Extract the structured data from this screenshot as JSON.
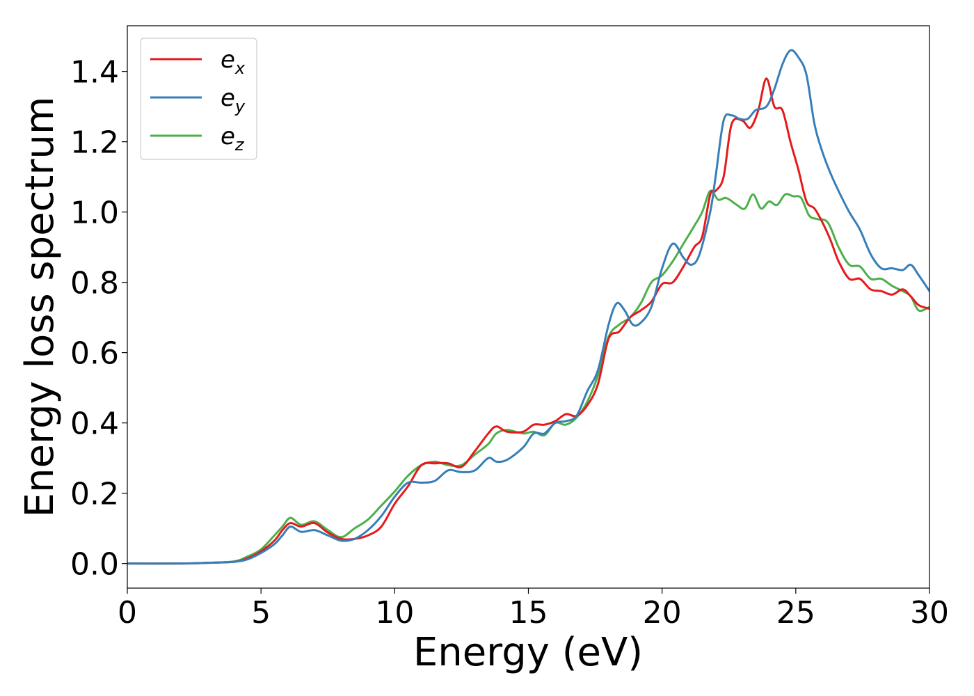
{
  "chart_data": {
    "type": "line",
    "title": "",
    "xlabel": "Energy (eV)",
    "ylabel": "Energy loss spectrum",
    "xlim": [
      0,
      30
    ],
    "ylim": [
      -0.07,
      1.53
    ],
    "xticks": [
      0,
      5,
      10,
      15,
      20,
      25,
      30
    ],
    "yticks": [
      0.0,
      0.2,
      0.4,
      0.6,
      0.8,
      1.0,
      1.2,
      1.4
    ],
    "xtick_labels": [
      "0",
      "5",
      "10",
      "15",
      "20",
      "25",
      "30"
    ],
    "ytick_labels": [
      "0.0",
      "0.2",
      "0.4",
      "0.6",
      "0.8",
      "1.0",
      "1.2",
      "1.4"
    ],
    "grid": false,
    "legend_position": "top-left",
    "series": [
      {
        "name": "e_x",
        "legend_base": "e",
        "legend_sub": "x",
        "color": "#e41a1c",
        "x": [
          0,
          2,
          3,
          4,
          4.5,
          5,
          5.5,
          5.8,
          6.1,
          6.5,
          7.0,
          7.5,
          8.0,
          8.5,
          9.0,
          9.5,
          10,
          10.5,
          11,
          11.5,
          12,
          12.5,
          13,
          13.5,
          13.8,
          14.2,
          14.8,
          15.2,
          15.6,
          16,
          16.4,
          16.8,
          17.2,
          17.6,
          18,
          18.4,
          18.8,
          19.2,
          19.6,
          20,
          20.4,
          20.8,
          21.2,
          21.5,
          21.8,
          22,
          22.3,
          22.6,
          23,
          23.3,
          23.6,
          23.9,
          24.2,
          24.5,
          24.8,
          25.1,
          25.4,
          25.7,
          26,
          26.3,
          26.6,
          27,
          27.4,
          27.8,
          28.2,
          28.6,
          29,
          29.3,
          29.6,
          30
        ],
        "values": [
          0,
          0,
          0.002,
          0.005,
          0.015,
          0.035,
          0.065,
          0.095,
          0.115,
          0.105,
          0.115,
          0.088,
          0.07,
          0.07,
          0.08,
          0.105,
          0.17,
          0.22,
          0.28,
          0.285,
          0.285,
          0.275,
          0.32,
          0.37,
          0.39,
          0.375,
          0.375,
          0.395,
          0.395,
          0.405,
          0.425,
          0.42,
          0.45,
          0.51,
          0.64,
          0.66,
          0.7,
          0.72,
          0.745,
          0.795,
          0.8,
          0.845,
          0.9,
          0.93,
          1.05,
          1.06,
          1.1,
          1.25,
          1.26,
          1.24,
          1.29,
          1.38,
          1.3,
          1.29,
          1.2,
          1.12,
          1.03,
          1.01,
          0.97,
          0.92,
          0.86,
          0.81,
          0.81,
          0.78,
          0.775,
          0.765,
          0.78,
          0.76,
          0.735,
          0.725
        ]
      },
      {
        "name": "e_y",
        "legend_base": "e",
        "legend_sub": "y",
        "color": "#377eb8",
        "x": [
          0,
          2,
          3,
          4,
          4.5,
          5,
          5.5,
          5.8,
          6.1,
          6.5,
          7.0,
          7.5,
          8.0,
          8.5,
          9.0,
          9.5,
          10,
          10.5,
          11,
          11.5,
          12,
          12.5,
          13,
          13.5,
          13.8,
          14.2,
          14.8,
          15.2,
          15.6,
          16,
          16.4,
          16.8,
          17.2,
          17.6,
          18,
          18.3,
          18.6,
          18.9,
          19.2,
          19.6,
          20,
          20.4,
          20.8,
          21.1,
          21.4,
          21.8,
          22,
          22.3,
          22.6,
          22.9,
          23.2,
          23.5,
          23.9,
          24.2,
          24.5,
          24.8,
          25.1,
          25.4,
          25.7,
          26,
          26.3,
          26.6,
          27,
          27.4,
          27.8,
          28.2,
          28.6,
          29,
          29.3,
          29.6,
          30
        ],
        "values": [
          0,
          0,
          0.002,
          0.005,
          0.012,
          0.03,
          0.055,
          0.08,
          0.105,
          0.09,
          0.095,
          0.08,
          0.065,
          0.07,
          0.095,
          0.135,
          0.19,
          0.23,
          0.23,
          0.235,
          0.265,
          0.26,
          0.265,
          0.3,
          0.29,
          0.295,
          0.33,
          0.37,
          0.37,
          0.4,
          0.405,
          0.42,
          0.49,
          0.55,
          0.68,
          0.74,
          0.72,
          0.68,
          0.685,
          0.73,
          0.84,
          0.91,
          0.87,
          0.85,
          0.88,
          1.0,
          1.1,
          1.26,
          1.275,
          1.265,
          1.265,
          1.29,
          1.3,
          1.35,
          1.42,
          1.46,
          1.44,
          1.39,
          1.25,
          1.17,
          1.11,
          1.06,
          1.0,
          0.95,
          0.88,
          0.84,
          0.84,
          0.835,
          0.85,
          0.82,
          0.775
        ]
      },
      {
        "name": "e_z",
        "legend_base": "e",
        "legend_sub": "z",
        "color": "#4daf4a",
        "x": [
          0,
          2,
          3,
          4,
          4.5,
          5,
          5.5,
          5.8,
          6.1,
          6.5,
          7.0,
          7.5,
          8.0,
          8.5,
          9.0,
          9.5,
          10,
          10.5,
          11,
          11.5,
          12,
          12.5,
          13,
          13.5,
          13.8,
          14.2,
          14.8,
          15.2,
          15.6,
          16,
          16.4,
          16.8,
          17.2,
          17.6,
          18,
          18.4,
          18.8,
          19.2,
          19.6,
          20,
          20.4,
          20.8,
          21.2,
          21.5,
          21.8,
          22.1,
          22.4,
          22.8,
          23.1,
          23.4,
          23.7,
          24.0,
          24.3,
          24.6,
          24.9,
          25.2,
          25.5,
          25.8,
          26.2,
          26.6,
          27.0,
          27.4,
          27.8,
          28.2,
          28.6,
          29,
          29.3,
          29.6,
          30
        ],
        "values": [
          0,
          0,
          0.002,
          0.006,
          0.02,
          0.04,
          0.08,
          0.105,
          0.13,
          0.11,
          0.12,
          0.095,
          0.075,
          0.1,
          0.125,
          0.165,
          0.205,
          0.25,
          0.28,
          0.29,
          0.28,
          0.28,
          0.31,
          0.34,
          0.37,
          0.38,
          0.37,
          0.375,
          0.365,
          0.4,
          0.395,
          0.415,
          0.46,
          0.535,
          0.645,
          0.68,
          0.7,
          0.74,
          0.8,
          0.82,
          0.86,
          0.91,
          0.96,
          1.0,
          1.06,
          1.035,
          1.04,
          1.02,
          1.01,
          1.05,
          1.01,
          1.03,
          1.02,
          1.05,
          1.045,
          1.04,
          0.99,
          0.98,
          0.97,
          0.9,
          0.85,
          0.845,
          0.81,
          0.81,
          0.79,
          0.775,
          0.76,
          0.72,
          0.73
        ]
      }
    ]
  }
}
